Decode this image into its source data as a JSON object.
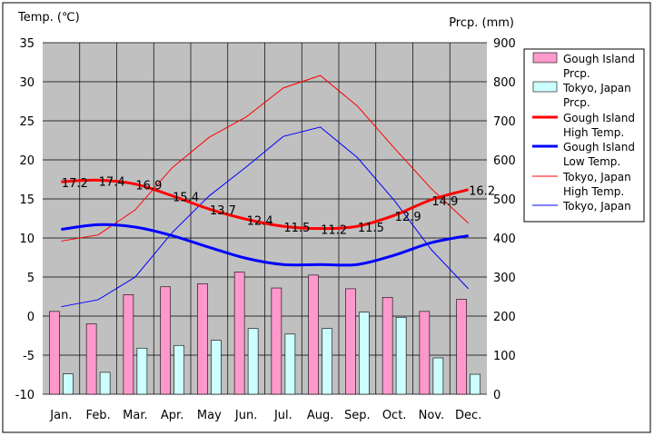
{
  "chart_data": {
    "type": "bar",
    "y_left_label": "Temp. (℃)",
    "y_right_label": "Prcp. (mm)",
    "categories": [
      "Jan.",
      "Feb.",
      "Mar.",
      "Apr.",
      "May",
      "Jun.",
      "Jul.",
      "Aug.",
      "Sep.",
      "Oct.",
      "Nov.",
      "Dec."
    ],
    "y_left": {
      "min": -10,
      "max": 35,
      "step": 5,
      "ticks": [
        "35",
        "30",
        "25",
        "20",
        "15",
        "10",
        "5",
        "0",
        "-5",
        "-10"
      ]
    },
    "y_right": {
      "min": 0,
      "max": 900,
      "step": 100,
      "ticks": [
        "900",
        "800",
        "700",
        "600",
        "500",
        "400",
        "300",
        "200",
        "100",
        "0"
      ]
    },
    "grid": true,
    "legend_position": "right",
    "bar_series": [
      {
        "name": "Gough Island Prcp.",
        "color": "#ff99cc",
        "values": [
          212,
          180,
          255,
          275,
          283,
          313,
          272,
          305,
          270,
          248,
          212,
          243
        ]
      },
      {
        "name": "Tokyo, Japan Prcp.",
        "color": "#ccffff",
        "values": [
          52,
          56,
          118,
          125,
          138,
          168,
          154,
          168,
          210,
          197,
          93,
          51
        ]
      }
    ],
    "line_series": [
      {
        "name": "Gough Island High Temp.",
        "color": "#ff0000",
        "width": 3,
        "values": [
          17.2,
          17.4,
          16.9,
          15.4,
          13.7,
          12.4,
          11.5,
          11.2,
          11.5,
          12.9,
          14.9,
          16.2
        ],
        "labels": [
          "17.2",
          "17.4",
          "16.9",
          "15.4",
          "13.7",
          "12.4",
          "11.5",
          "11.2",
          "11.5",
          "12.9",
          "14.9",
          "16.2"
        ]
      },
      {
        "name": "Gough Island Low Temp.",
        "color": "#0000ff",
        "width": 3,
        "values": [
          11.1,
          11.7,
          11.4,
          10.3,
          8.8,
          7.4,
          6.6,
          6.6,
          6.6,
          7.8,
          9.4,
          10.3
        ]
      },
      {
        "name": "Tokyo, Japan High Temp.",
        "color": "#ff0000",
        "width": 1,
        "values": [
          9.6,
          10.4,
          13.6,
          19.0,
          22.9,
          25.5,
          29.2,
          30.8,
          26.9,
          21.5,
          16.3,
          11.9
        ]
      },
      {
        "name": "Tokyo, Japan Low Temp.",
        "color": "#0000ff",
        "width": 1,
        "values": [
          1.2,
          2.1,
          5.0,
          10.7,
          15.4,
          19.1,
          23.0,
          24.2,
          20.3,
          14.8,
          8.5,
          3.5
        ]
      }
    ],
    "legend": [
      {
        "name_lines": [
          "Gough Island",
          "Prcp."
        ]
      },
      {
        "name_lines": [
          "Tokyo, Japan",
          "Prcp."
        ]
      },
      {
        "name_lines": [
          "Gough Island",
          "High Temp."
        ]
      },
      {
        "name_lines": [
          "Gough Island",
          "Low Temp."
        ]
      },
      {
        "name_lines": [
          "Tokyo, Japan",
          "High Temp."
        ]
      },
      {
        "name_lines": [
          "Tokyo, Japan"
        ]
      }
    ]
  }
}
